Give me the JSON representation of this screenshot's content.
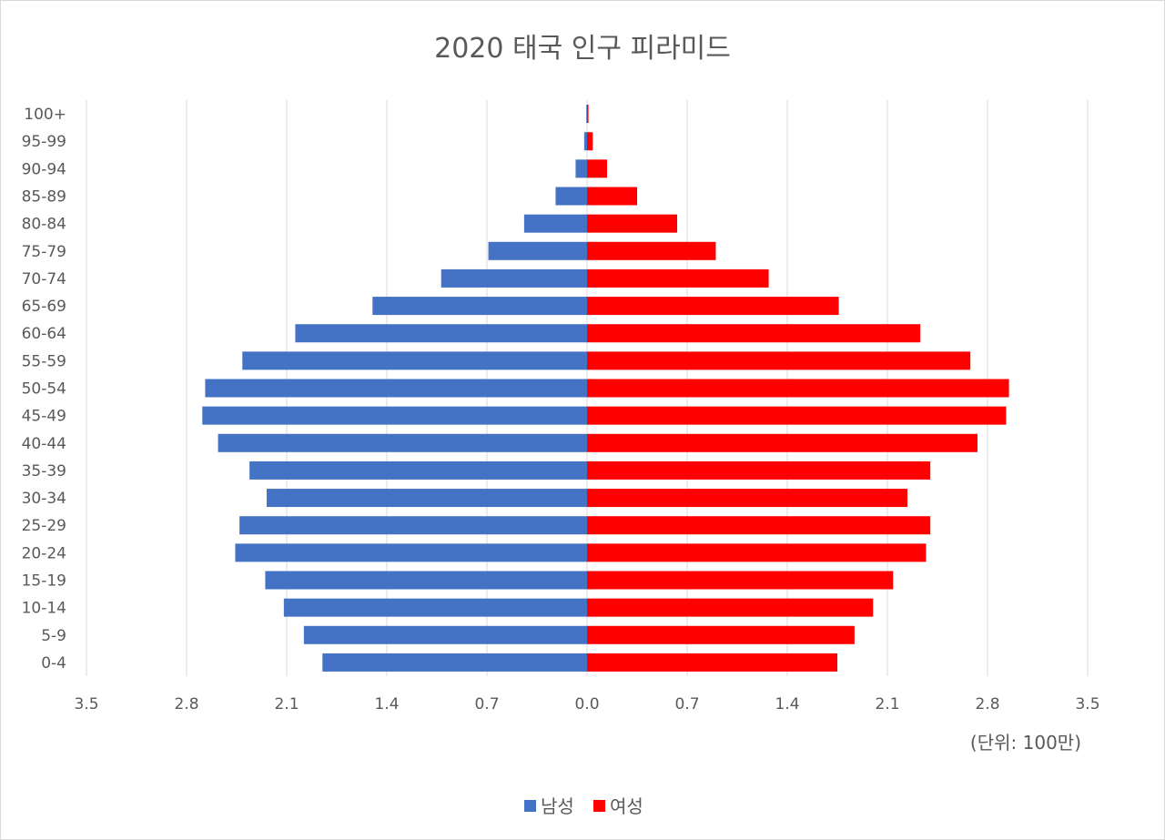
{
  "chart_data": {
    "type": "bar",
    "orientation": "horizontal",
    "title": "2020 태국 인구 피라미드",
    "unit_note": "(단위: 100만)",
    "categories": [
      "0-4",
      "5-9",
      "10-14",
      "15-19",
      "20-24",
      "25-29",
      "30-34",
      "35-39",
      "40-44",
      "45-49",
      "50-54",
      "55-59",
      "60-64",
      "65-69",
      "70-74",
      "75-79",
      "80-84",
      "85-89",
      "90-94",
      "95-99",
      "100+"
    ],
    "series": [
      {
        "name": "남성",
        "color": "#4472C4",
        "side": "left",
        "values": [
          1.85,
          1.98,
          2.12,
          2.25,
          2.46,
          2.43,
          2.24,
          2.36,
          2.58,
          2.69,
          2.67,
          2.41,
          2.04,
          1.5,
          1.02,
          0.69,
          0.44,
          0.22,
          0.08,
          0.02,
          0.005
        ]
      },
      {
        "name": "여성",
        "color": "#FF0000",
        "side": "right",
        "values": [
          1.75,
          1.87,
          2.0,
          2.14,
          2.37,
          2.4,
          2.24,
          2.4,
          2.73,
          2.93,
          2.95,
          2.68,
          2.33,
          1.76,
          1.27,
          0.9,
          0.63,
          0.35,
          0.14,
          0.04,
          0.01
        ]
      }
    ],
    "xlim": [
      -3.5,
      3.5
    ],
    "x_ticks": [
      -3.5,
      -2.8,
      -2.1,
      -1.4,
      -0.7,
      0.0,
      0.7,
      1.4,
      2.1,
      2.8,
      3.5
    ],
    "x_tick_labels": [
      "3.5",
      "2.8",
      "2.1",
      "1.4",
      "0.7",
      "0.0",
      "0.7",
      "1.4",
      "2.1",
      "2.8",
      "3.5"
    ],
    "grid": "vertical",
    "legend": "bottom-center"
  }
}
